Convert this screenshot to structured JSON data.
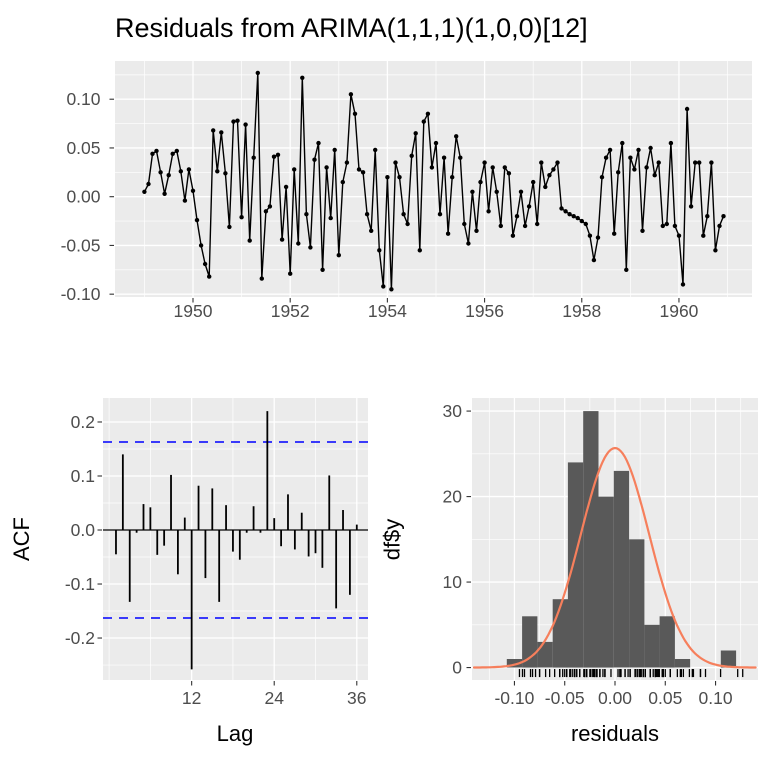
{
  "title": "Residuals from ARIMA(1,1,1)(1,0,0)[12]",
  "colors": {
    "background": "#FFFFFF",
    "panel_background": "#EBEBEB",
    "grid_major": "#FFFFFF",
    "grid_minor": "#FFFFFF",
    "axis_text": "#4D4D4D",
    "axis_title": "#000000",
    "tick_mark": "#333333",
    "series_line": "#000000",
    "acf_bar": "#000000",
    "acf_zero_line": "#000000",
    "ci_line": "#0000FF",
    "hist_fill": "#595959",
    "normal_curve": "#F67F5C",
    "rug": "#000000"
  },
  "chart_data": [
    {
      "name": "residuals-time-series",
      "type": "line",
      "title": "",
      "xlabel": "",
      "ylabel": "",
      "start_year": 1949,
      "frequency": 12,
      "values": [
        0.005,
        0.013,
        0.044,
        0.047,
        0.025,
        0.003,
        0.022,
        0.044,
        0.047,
        0.026,
        -0.004,
        0.028,
        0.006,
        -0.024,
        -0.05,
        -0.069,
        -0.082,
        0.068,
        0.026,
        0.066,
        0.024,
        -0.031,
        0.077,
        0.078,
        -0.021,
        0.074,
        -0.045,
        0.04,
        0.127,
        -0.084,
        -0.015,
        -0.01,
        0.041,
        0.043,
        -0.044,
        0.01,
        -0.079,
        0.028,
        -0.048,
        0.122,
        -0.018,
        -0.052,
        0.038,
        0.055,
        -0.075,
        0.03,
        -0.022,
        0.048,
        -0.06,
        0.015,
        0.035,
        0.105,
        0.085,
        0.028,
        0.025,
        -0.018,
        -0.035,
        0.048,
        -0.055,
        -0.092,
        0.02,
        -0.095,
        0.035,
        0.02,
        -0.018,
        -0.028,
        0.042,
        0.065,
        -0.055,
        0.077,
        0.085,
        0.03,
        0.055,
        -0.018,
        0.04,
        -0.038,
        0.02,
        0.062,
        0.04,
        -0.028,
        -0.048,
        0.005,
        -0.035,
        0.015,
        0.035,
        -0.015,
        0.03,
        0.005,
        -0.03,
        0.03,
        0.024,
        -0.04,
        -0.02,
        0.005,
        -0.03,
        -0.01,
        0.015,
        -0.028,
        0.035,
        0.01,
        0.022,
        0.028,
        0.035,
        -0.012,
        -0.015,
        -0.018,
        -0.02,
        -0.022,
        -0.025,
        -0.028,
        -0.04,
        -0.065,
        -0.042,
        0.02,
        0.04,
        0.048,
        -0.038,
        0.025,
        0.055,
        -0.075,
        0.04,
        0.028,
        0.048,
        -0.035,
        0.03,
        0.05,
        0.022,
        0.035,
        -0.03,
        -0.028,
        0.055,
        -0.03,
        -0.04,
        -0.09,
        0.09,
        -0.01,
        0.035,
        0.035,
        -0.04,
        -0.02,
        0.035,
        -0.055,
        -0.03,
        -0.02
      ],
      "xlim": [
        1948.395,
        1961.503
      ],
      "ylim": [
        -0.1029,
        0.1392
      ],
      "xticks": {
        "values": [
          1950,
          1952,
          1954,
          1956,
          1958,
          1960
        ],
        "labels": [
          "1950",
          "1952",
          "1954",
          "1956",
          "1958",
          "1960"
        ]
      },
      "yticks": {
        "values": [
          -0.1,
          -0.05,
          0.0,
          0.05,
          0.1
        ],
        "labels": [
          "-0.10",
          "-0.05",
          "0.00",
          "0.05",
          "0.10"
        ]
      },
      "minor_x": [
        1949,
        1951,
        1953,
        1955,
        1957,
        1959,
        1961
      ],
      "minor_y": [
        -0.075,
        -0.025,
        0.025,
        0.075,
        0.125
      ]
    },
    {
      "name": "acf-plot",
      "type": "bar",
      "xlabel": "Lag",
      "ylabel": "ACF",
      "lag_start": 1,
      "values": [
        -0.045,
        0.14,
        -0.133,
        -0.005,
        0.048,
        0.042,
        -0.046,
        -0.029,
        0.102,
        -0.082,
        0.023,
        -0.258,
        0.082,
        -0.089,
        0.077,
        -0.133,
        0.046,
        -0.04,
        -0.055,
        -0.005,
        0.044,
        -0.005,
        0.22,
        0.022,
        -0.03,
        0.066,
        -0.036,
        0.032,
        -0.049,
        -0.043,
        -0.07,
        0.101,
        -0.145,
        0.037,
        -0.12,
        0.01
      ],
      "conf_limit": 0.163,
      "xlim": [
        -0.886,
        37.63
      ],
      "ylim": [
        -0.2777,
        0.2444
      ],
      "xticks": {
        "values": [
          12,
          24,
          36
        ],
        "labels": [
          "12",
          "24",
          "36"
        ]
      },
      "yticks": {
        "values": [
          -0.2,
          -0.1,
          0.0,
          0.1,
          0.2
        ],
        "labels": [
          "-0.2",
          "-0.1",
          "0.0",
          "0.1",
          "0.2"
        ]
      },
      "minor_x": [
        0,
        6,
        18,
        30
      ],
      "minor_y": [
        -0.25,
        -0.15,
        -0.05,
        0.05,
        0.15
      ]
    },
    {
      "name": "residuals-histogram",
      "type": "histogram",
      "xlabel": "residuals",
      "ylabel": "df$y",
      "bin_width": 0.0152,
      "bin_centers": [
        -0.1,
        -0.0848,
        -0.0696,
        -0.0544,
        -0.0392,
        -0.024,
        -0.0088,
        0.0064,
        0.0216,
        0.0368,
        0.052,
        0.0672,
        0.0824,
        0.0976,
        0.1128
      ],
      "counts": [
        1,
        6,
        3,
        8,
        24,
        30,
        20,
        23,
        15,
        5,
        6,
        1,
        0,
        0,
        2
      ],
      "normal_curve": {
        "mean": 0.0,
        "sd": 0.034,
        "n": 144
      },
      "xlim": [
        -0.1422,
        0.1422
      ],
      "ylim": [
        -1.455,
        31.53
      ],
      "xticks": {
        "values": [
          -0.1,
          -0.05,
          0.0,
          0.05,
          0.1
        ],
        "labels": [
          "-0.10",
          "-0.05",
          "0.00",
          "0.05",
          "0.10"
        ]
      },
      "yticks": {
        "values": [
          0,
          10,
          20,
          30
        ],
        "labels": [
          "0",
          "10",
          "20",
          "30"
        ]
      },
      "minor_x": [
        -0.125,
        -0.075,
        -0.025,
        0.025,
        0.075,
        0.125
      ],
      "minor_y": [
        5,
        15,
        25
      ]
    }
  ]
}
